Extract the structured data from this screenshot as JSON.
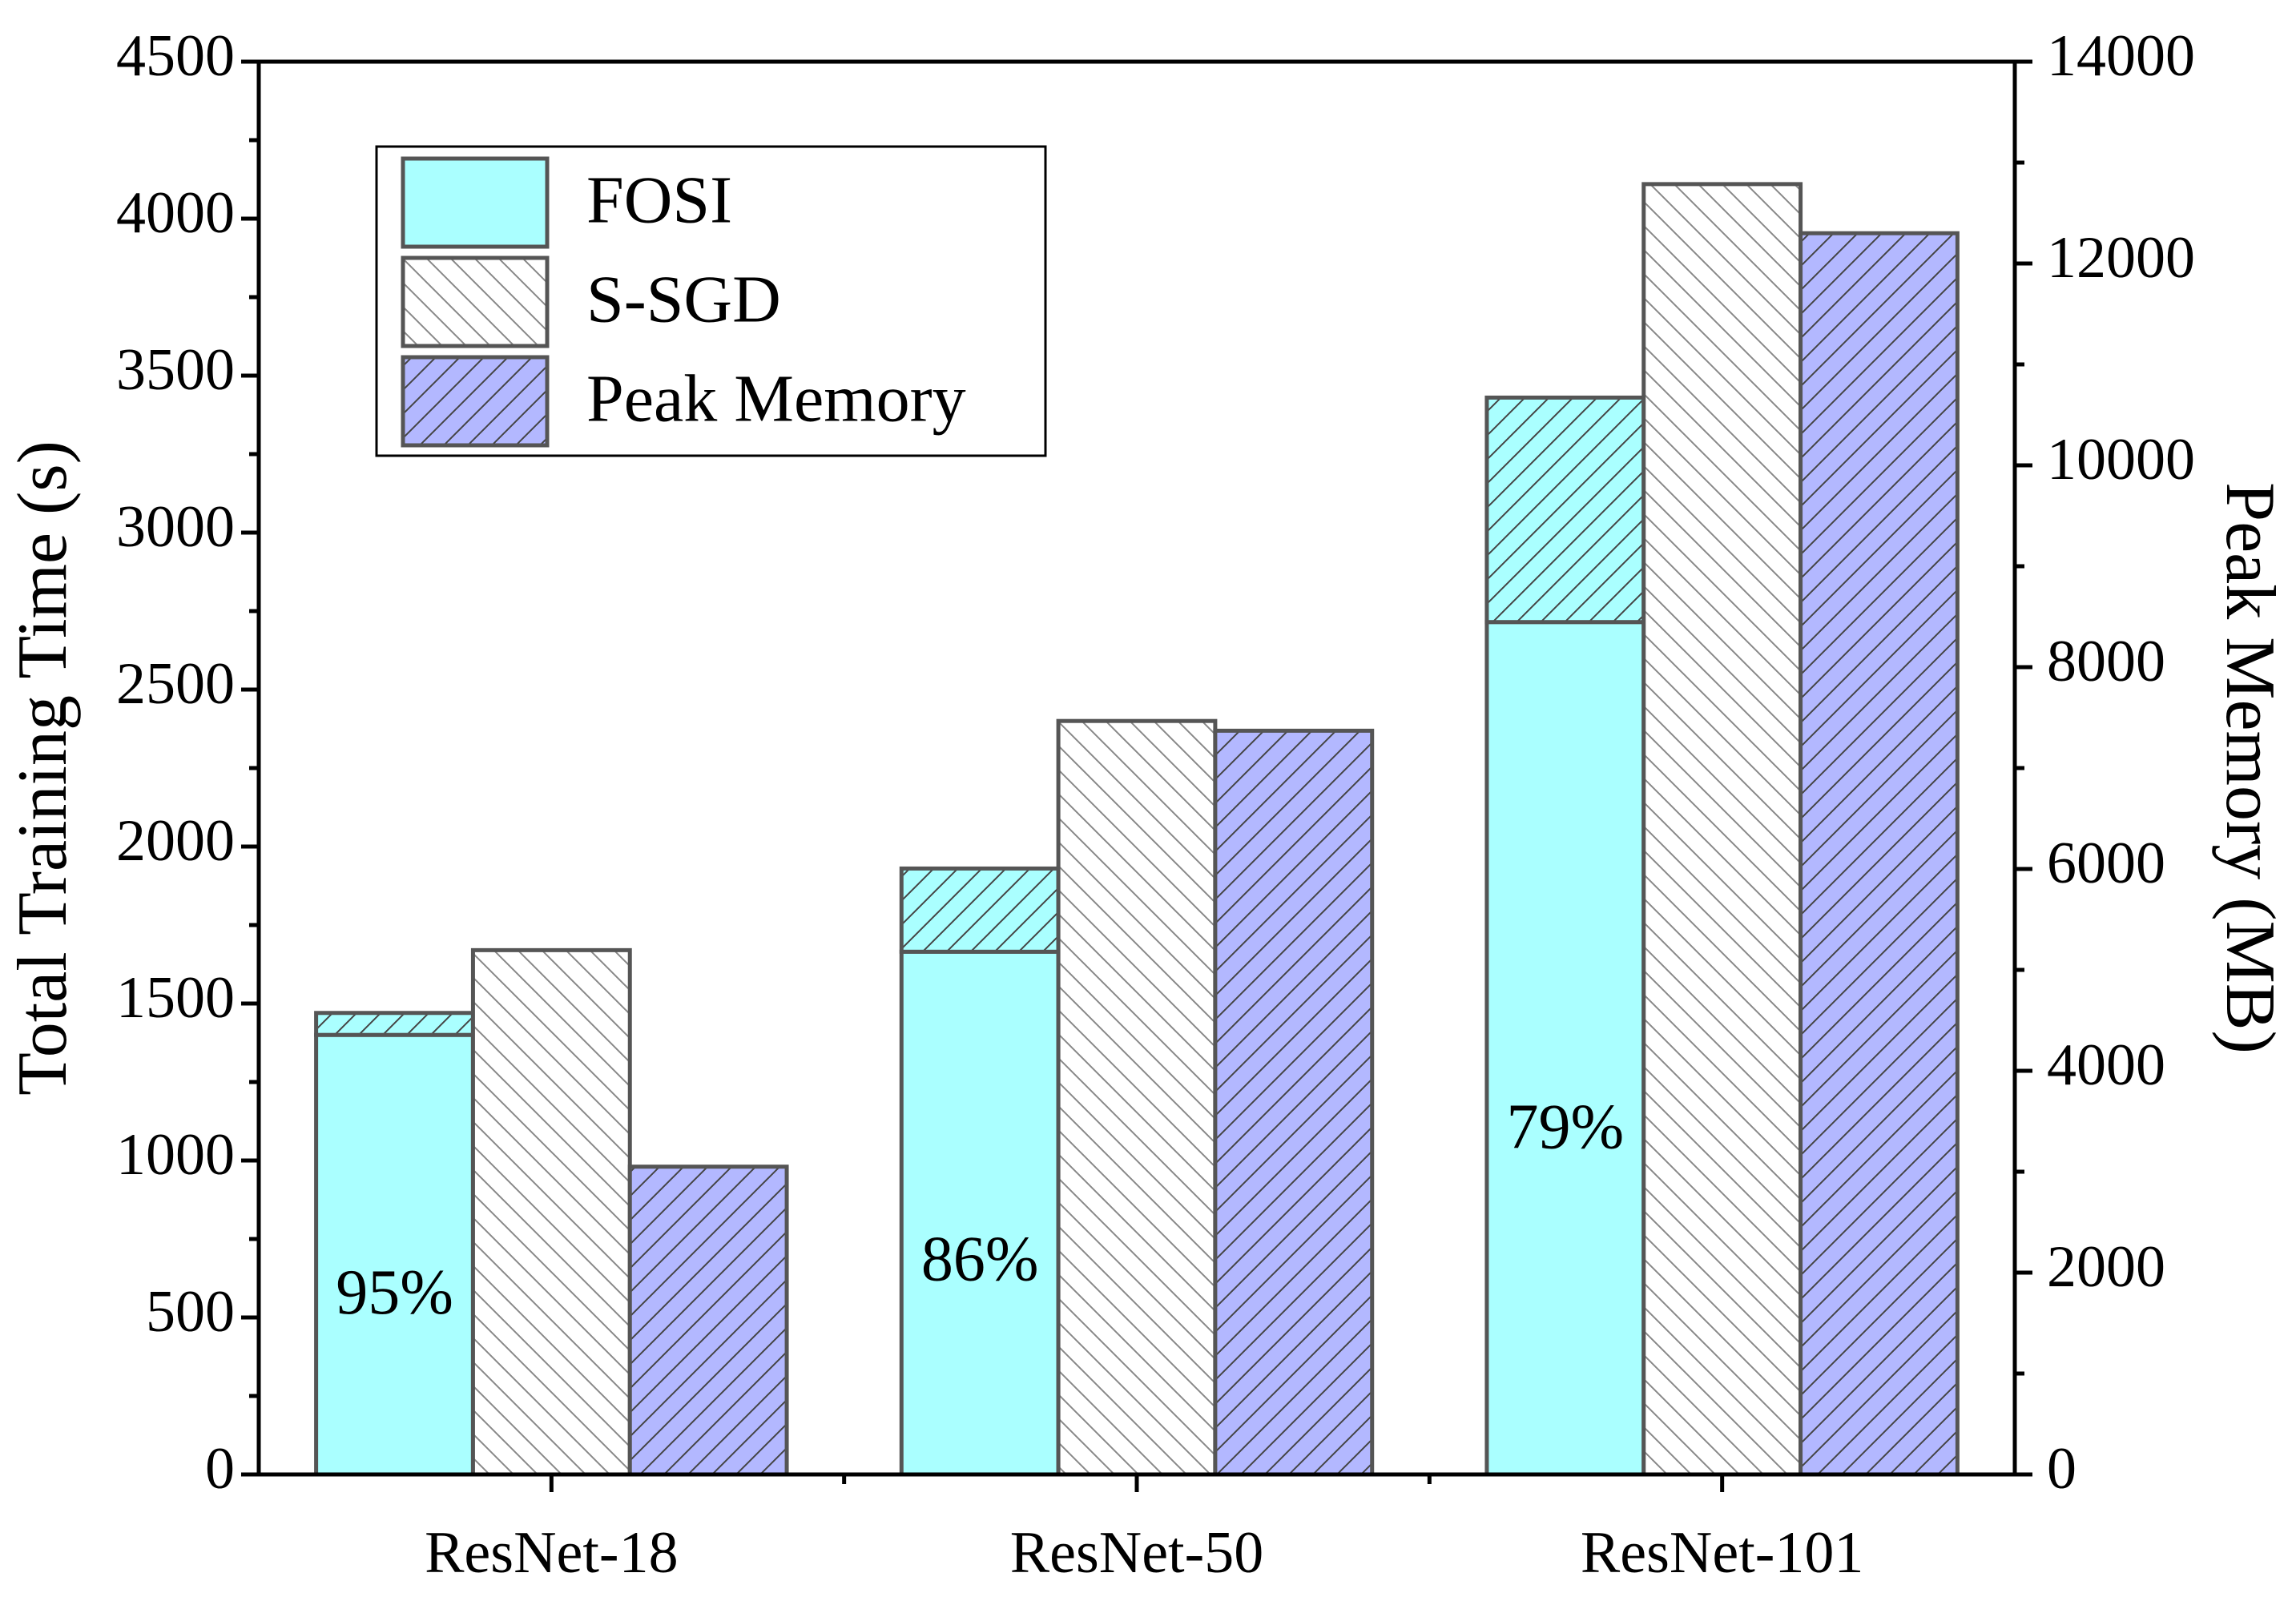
{
  "chart_data": {
    "type": "bar",
    "categories": [
      "ResNet-18",
      "ResNet-50",
      "ResNet-101"
    ],
    "ylabel": "Total Training Time (s)",
    "y2label": "Peak Memory (MB)",
    "ylim": [
      0,
      4500
    ],
    "yticks": [
      0,
      500,
      1000,
      1500,
      2000,
      2500,
      3000,
      3500,
      4000,
      4500
    ],
    "y2lim": [
      0,
      14000
    ],
    "y2ticks": [
      0,
      2000,
      4000,
      6000,
      8000,
      10000,
      12000,
      14000
    ],
    "series": [
      {
        "name": "FOSI",
        "color": "#aaffff",
        "values": [
          1400,
          1665,
          2715
        ]
      },
      {
        "color": "#aaffff",
        "hatch": "/",
        "stacked": true,
        "values": [
          70,
          265,
          715
        ]
      },
      {
        "name": "S-SGD",
        "color": "#ffffff",
        "hatch": "\\",
        "values": [
          1670,
          2400,
          4110
        ]
      },
      {
        "name": "Peak Memory",
        "color": "#b3b8ff",
        "hatch": "/",
        "axis": "y2",
        "values": [
          3050,
          7370,
          12300
        ]
      }
    ],
    "annotations": [
      "95%",
      "86%",
      "79%"
    ],
    "legend": "upper left"
  }
}
